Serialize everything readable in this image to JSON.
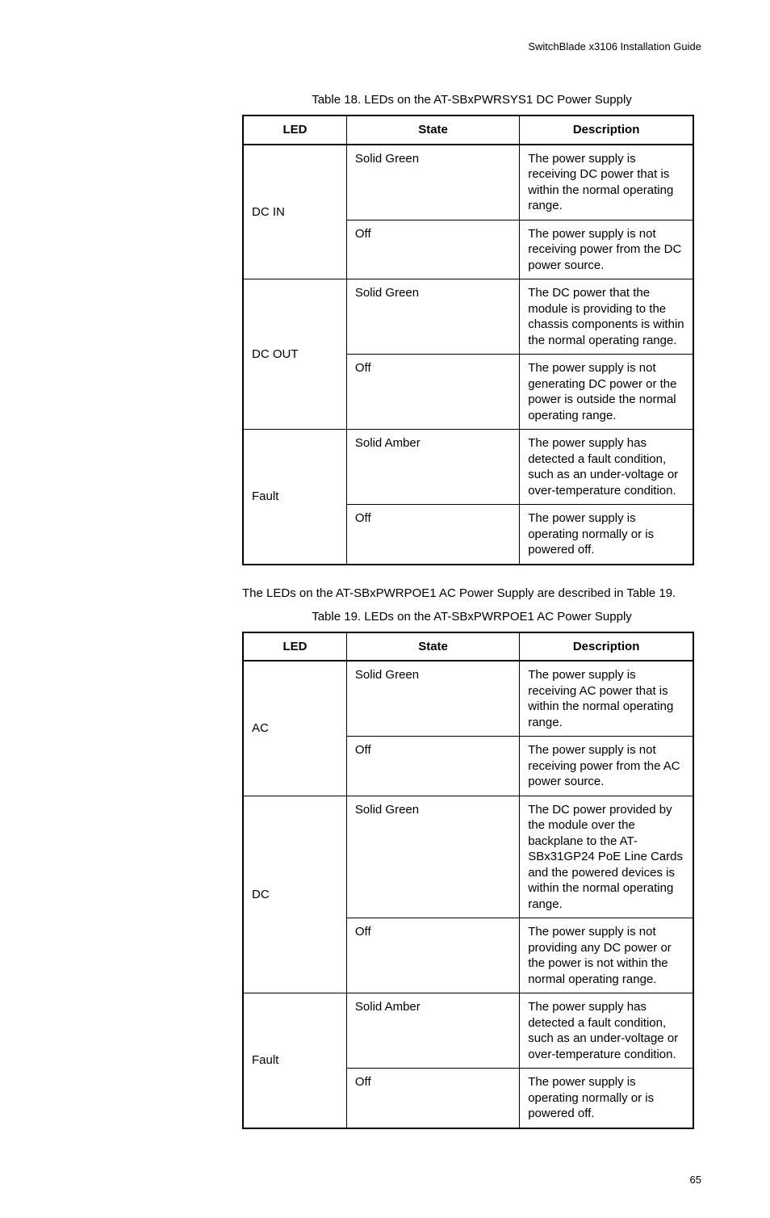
{
  "header": "SwitchBlade x3106 Installation Guide",
  "table18": {
    "caption": "Table 18.   LEDs on the AT-SBxPWRSYS1 DC Power Supply",
    "headers": {
      "led": "LED",
      "state": "State",
      "description": "Description"
    },
    "groups": [
      {
        "led": "DC IN",
        "rows": [
          {
            "state": "Solid Green",
            "desc": "The power supply is receiving DC power that is within the normal operating range."
          },
          {
            "state": "Off",
            "desc": "The power supply is not receiving power from the DC power source."
          }
        ]
      },
      {
        "led": "DC OUT",
        "rows": [
          {
            "state": "Solid Green",
            "desc": "The DC power that the module is providing to the chassis components is within the normal operating range."
          },
          {
            "state": "Off",
            "desc": "The power supply is not generating DC power or the power is outside the normal operating range."
          }
        ]
      },
      {
        "led": "Fault",
        "rows": [
          {
            "state": "Solid Amber",
            "desc": "The power supply has detected a fault condition, such as an under-voltage or over-temperature condition."
          },
          {
            "state": "Off",
            "desc": "The power supply is operating normally or is powered off."
          }
        ]
      }
    ]
  },
  "intro19": "The LEDs on the AT-SBxPWRPOE1 AC Power Supply are described in Table 19.",
  "table19": {
    "caption": "Table 19.   LEDs on the AT-SBxPWRPOE1 AC Power Supply",
    "headers": {
      "led": "LED",
      "state": "State",
      "description": "Description"
    },
    "groups": [
      {
        "led": "AC",
        "rows": [
          {
            "state": "Solid Green",
            "desc": "The power supply is receiving AC power that is within the normal operating range."
          },
          {
            "state": "Off",
            "desc": "The power supply is not receiving power from the AC power source."
          }
        ]
      },
      {
        "led": "DC",
        "rows": [
          {
            "state": "Solid Green",
            "desc": "The DC power provided by the module over the backplane to the AT-SBx31GP24 PoE Line Cards and the powered devices is within the normal operating range."
          },
          {
            "state": "Off",
            "desc": "The power supply is not providing any DC power or the power is not within the normal operating range."
          }
        ]
      },
      {
        "led": "Fault",
        "rows": [
          {
            "state": "Solid Amber",
            "desc": "The power supply has detected a fault condition, such as an under-voltage or over-temperature condition."
          },
          {
            "state": "Off",
            "desc": "The power supply is operating normally or is powered off."
          }
        ]
      }
    ]
  },
  "pageNumber": "65"
}
